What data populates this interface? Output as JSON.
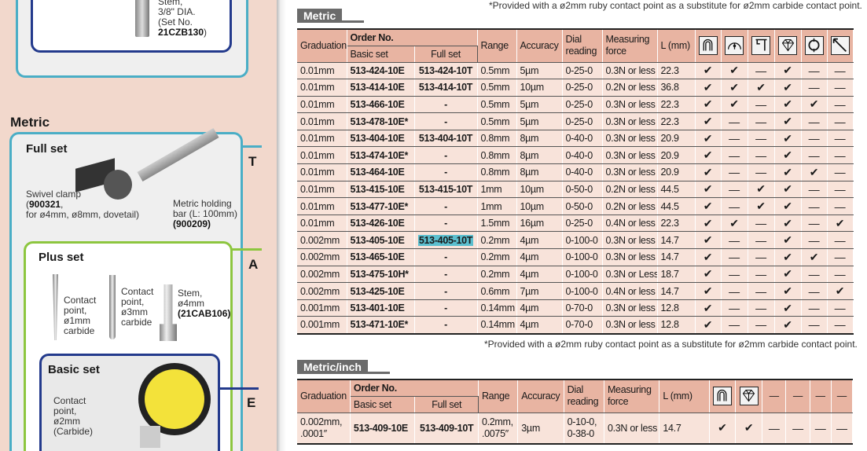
{
  "top_note_partial": "*Provided with a ø2mm ruby contact point as a substitute for ø2mm carbide contact point.",
  "left": {
    "top_box": {
      "label_line1": "Stem,",
      "label_line2": "3/8\" DIA.",
      "label_line3": "(Set No.",
      "set_no": "21CZB130",
      "close": ")"
    },
    "heading": "Metric",
    "full_set": {
      "title": "Full set",
      "side_letter": "T",
      "clamp": {
        "line1": "Swivel clamp",
        "code": "900321",
        "line3": "for ø4mm, ø8mm, dovetail)"
      },
      "bar": {
        "line1": "Metric holding",
        "line2": "bar (L: 100mm)",
        "code": "(900209)"
      }
    },
    "plus_set": {
      "title": "Plus set",
      "side_letter": "A",
      "cp1": [
        "Contact",
        "point,",
        "ø1mm",
        "carbide"
      ],
      "cp3": [
        "Contact",
        "point,",
        "ø3mm",
        "carbide"
      ],
      "stem": {
        "line1": "Stem,",
        "line2": "ø4mm",
        "code": "(21CAB106)"
      }
    },
    "basic_set": {
      "title": "Basic set",
      "side_letter": "E",
      "cp2": [
        "Contact",
        "point,",
        "ø2mm",
        "(Carbide)"
      ]
    }
  },
  "metric": {
    "heading": "Metric",
    "headers": {
      "graduation": "Graduation",
      "order_no": "Order No.",
      "basic": "Basic set",
      "full": "Full set",
      "range": "Range",
      "accuracy": "Accuracy",
      "dial": "Dial reading",
      "force": "Measuring force",
      "l": "L (mm)"
    },
    "icons": [
      "horseshoe-icon",
      "dial-face-icon",
      "bracket-stylus-icon",
      "diamond-icon",
      "ring-icon",
      "diagonal-stylus-icon"
    ],
    "check": "✔",
    "dash": "—",
    "rows": [
      {
        "grad": "0.01mm",
        "basic": "513-424-10E",
        "full": "513-424-10T",
        "range": "0.5mm",
        "acc": "5µm",
        "dial": "0-25-0",
        "force": "0.3N or less",
        "l": "22.3",
        "checks": [
          1,
          1,
          0,
          1,
          0,
          0
        ]
      },
      {
        "grad": "0.01mm",
        "basic": "513-414-10E",
        "full": "513-414-10T",
        "range": "0.5mm",
        "acc": "10µm",
        "dial": "0-25-0",
        "force": "0.2N or less",
        "l": "36.8",
        "checks": [
          1,
          1,
          1,
          1,
          0,
          0
        ]
      },
      {
        "grad": "0.01mm",
        "basic": "513-466-10E",
        "full": "-",
        "range": "0.5mm",
        "acc": "5µm",
        "dial": "0-25-0",
        "force": "0.3N or less",
        "l": "22.3",
        "checks": [
          1,
          1,
          0,
          1,
          1,
          0
        ]
      },
      {
        "grad": "0.01mm",
        "basic": "513-478-10E*",
        "full": "-",
        "range": "0.5mm",
        "acc": "5µm",
        "dial": "0-25-0",
        "force": "0.3N or less",
        "l": "22.3",
        "checks": [
          1,
          0,
          0,
          1,
          0,
          0
        ]
      },
      {
        "grad": "0.01mm",
        "basic": "513-404-10E",
        "full": "513-404-10T",
        "range": "0.8mm",
        "acc": "8µm",
        "dial": "0-40-0",
        "force": "0.3N or less",
        "l": "20.9",
        "checks": [
          1,
          0,
          0,
          1,
          0,
          0
        ]
      },
      {
        "grad": "0.01mm",
        "basic": "513-474-10E*",
        "full": "-",
        "range": "0.8mm",
        "acc": "8µm",
        "dial": "0-40-0",
        "force": "0.3N or less",
        "l": "20.9",
        "checks": [
          1,
          0,
          0,
          1,
          0,
          0
        ]
      },
      {
        "grad": "0.01mm",
        "basic": "513-464-10E",
        "full": "-",
        "range": "0.8mm",
        "acc": "8µm",
        "dial": "0-40-0",
        "force": "0.3N or less",
        "l": "20.9",
        "checks": [
          1,
          0,
          0,
          1,
          1,
          0
        ]
      },
      {
        "grad": "0.01mm",
        "basic": "513-415-10E",
        "full": "513-415-10T",
        "range": "1mm",
        "acc": "10µm",
        "dial": "0-50-0",
        "force": "0.2N or less",
        "l": "44.5",
        "checks": [
          1,
          0,
          1,
          1,
          0,
          0
        ]
      },
      {
        "grad": "0.01mm",
        "basic": "513-477-10E*",
        "full": "-",
        "range": "1mm",
        "acc": "10µm",
        "dial": "0-50-0",
        "force": "0.2N or less",
        "l": "44.5",
        "checks": [
          1,
          0,
          1,
          1,
          0,
          0
        ]
      },
      {
        "grad": "0.01mm",
        "basic": "513-426-10E",
        "full": "-",
        "range": "1.5mm",
        "acc": "16µm",
        "dial": "0-25-0",
        "force": "0.4N or less",
        "l": "22.3",
        "checks": [
          1,
          1,
          0,
          1,
          0,
          1
        ]
      },
      {
        "grad": "0.002mm",
        "basic": "513-405-10E",
        "full": "513-405-10T",
        "highlight": true,
        "range": "0.2mm",
        "acc": "4µm",
        "dial": "0-100-0",
        "force": "0.3N or less",
        "l": "14.7",
        "checks": [
          1,
          0,
          0,
          1,
          0,
          0
        ]
      },
      {
        "grad": "0.002mm",
        "basic": "513-465-10E",
        "full": "-",
        "range": "0.2mm",
        "acc": "4µm",
        "dial": "0-100-0",
        "force": "0.3N or less",
        "l": "14.7",
        "checks": [
          1,
          0,
          0,
          1,
          1,
          0
        ]
      },
      {
        "grad": "0.002mm",
        "basic": "513-475-10H*",
        "full": "-",
        "range": "0.2mm",
        "acc": "4µm",
        "dial": "0-100-0",
        "force": "0.3N or Less",
        "l": "18.7",
        "checks": [
          1,
          0,
          0,
          1,
          0,
          0
        ]
      },
      {
        "grad": "0.002mm",
        "basic": "513-425-10E",
        "full": "-",
        "range": "0.6mm",
        "acc": "7µm",
        "dial": "0-100-0",
        "force": "0.4N or less",
        "l": "14.7",
        "checks": [
          1,
          0,
          0,
          1,
          0,
          1
        ]
      },
      {
        "grad": "0.001mm",
        "basic": "513-401-10E",
        "full": "-",
        "range": "0.14mm",
        "acc": "4µm",
        "dial": "0-70-0",
        "force": "0.3N or less",
        "l": "12.8",
        "checks": [
          1,
          0,
          0,
          1,
          0,
          0
        ]
      },
      {
        "grad": "0.001mm",
        "basic": "513-471-10E*",
        "full": "-",
        "range": "0.14mm",
        "acc": "4µm",
        "dial": "0-70-0",
        "force": "0.3N or less",
        "l": "12.8",
        "checks": [
          1,
          0,
          0,
          1,
          0,
          0
        ]
      }
    ],
    "footnote": "*Provided with a ø2mm ruby contact point as a substitute for ø2mm carbide contact point."
  },
  "metric_inch": {
    "heading": "Metric/inch",
    "icons": [
      "horseshoe-icon",
      "diamond-icon"
    ],
    "row": {
      "grad": "0.002mm,\n.0001″",
      "basic": "513-409-10E",
      "full": "513-409-10T",
      "range": "0.2mm,\n.0075″",
      "acc": "3µm",
      "dial": "0-10-0,\n0-38-0",
      "force": "0.3N or less",
      "l": "14.7",
      "checks": [
        1,
        1,
        0,
        0,
        0,
        0
      ]
    }
  },
  "colors": {
    "left_bg": "#f2d8cc",
    "header_bg": "#e8b4a2",
    "row_bg": "#f8e3da",
    "highlight": "#5bbfcf",
    "cyan_box": "#4aaec6",
    "green_box": "#8dc63f",
    "navy_box": "#233a8c"
  }
}
